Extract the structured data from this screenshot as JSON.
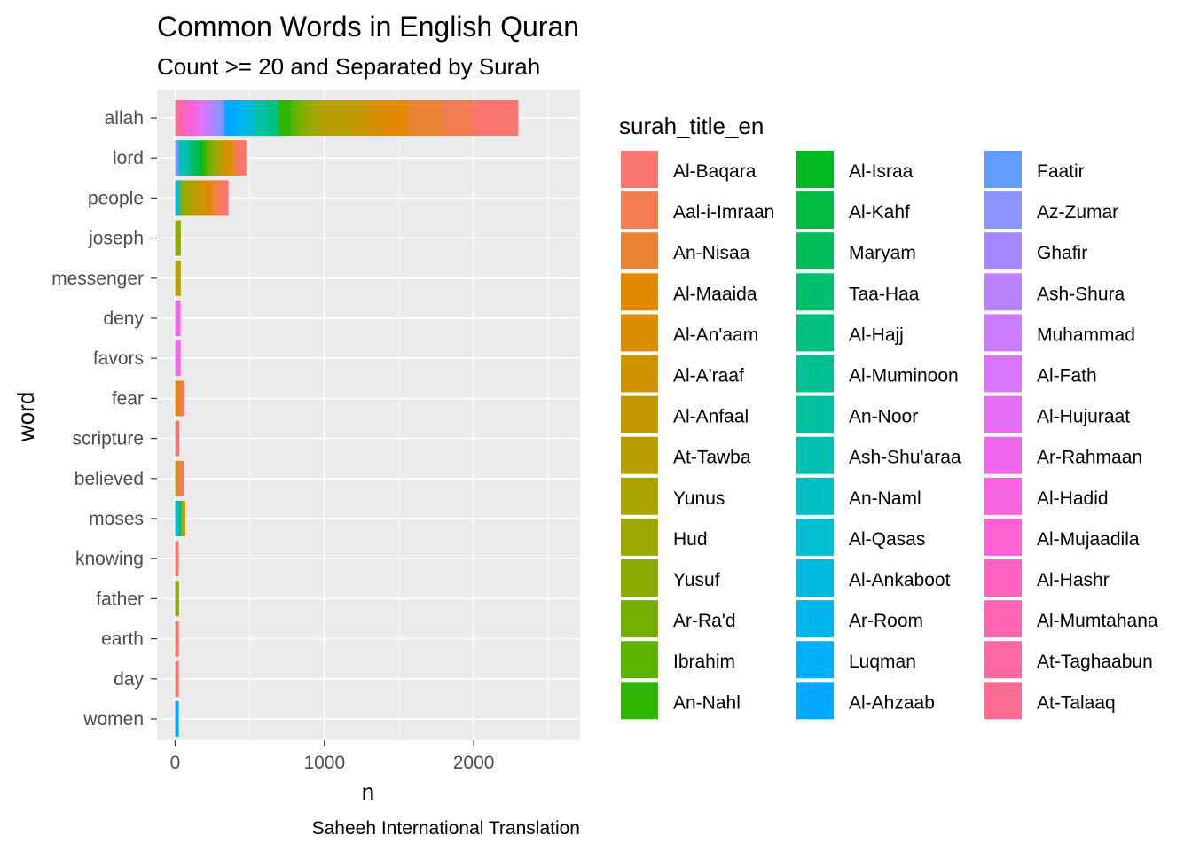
{
  "chart_data": {
    "type": "bar",
    "orientation": "horizontal",
    "stacked": true,
    "title": "Common Words in English Quran",
    "subtitle": "Count >= 20 and Separated by Surah",
    "xlabel": "n",
    "ylabel": "word",
    "caption": "Saheeh International Translation",
    "xlim": [
      0,
      2700
    ],
    "xticks": [
      0,
      1000,
      2000
    ],
    "grid": true,
    "legend_position": "right",
    "legend_title": "surah_title_en",
    "categories": [
      "allah",
      "lord",
      "people",
      "joseph",
      "messenger",
      "deny",
      "favors",
      "fear",
      "scripture",
      "believed",
      "moses",
      "knowing",
      "father",
      "earth",
      "day",
      "women"
    ],
    "surahs": [
      "Al-Baqara",
      "Aal-i-Imraan",
      "An-Nisaa",
      "Al-Maaida",
      "Al-An'aam",
      "Al-A'raaf",
      "Al-Anfaal",
      "At-Tawba",
      "Yunus",
      "Hud",
      "Yusuf",
      "Ar-Ra'd",
      "Ibrahim",
      "An-Nahl",
      "Al-Israa",
      "Al-Kahf",
      "Maryam",
      "Taa-Haa",
      "Al-Hajj",
      "Al-Muminoon",
      "An-Noor",
      "Ash-Shu'araa",
      "An-Naml",
      "Al-Qasas",
      "Al-Ankaboot",
      "Ar-Room",
      "Luqman",
      "Al-Ahzaab",
      "Faatir",
      "Az-Zumar",
      "Ghafir",
      "Ash-Shura",
      "Muhammad",
      "Al-Fath",
      "Al-Hujuraat",
      "Ar-Rahmaan",
      "Al-Hadid",
      "Al-Mujaadila",
      "Al-Hashr",
      "Al-Mumtahana",
      "At-Taghaabun",
      "At-Talaaq"
    ],
    "colors": [
      "#F8766D",
      "#F27D53",
      "#EB8335",
      "#E38900",
      "#DA8F00",
      "#CF9400",
      "#C49A00",
      "#B79F00",
      "#AAA300",
      "#9BA800",
      "#8AAB00",
      "#75AF00",
      "#5BB300",
      "#30B600",
      "#00B81F",
      "#00BA42",
      "#00BC59",
      "#00BE6D",
      "#00BF80",
      "#00C091",
      "#00C0A2",
      "#00C0B2",
      "#00BFC2",
      "#00BDD0",
      "#00BADE",
      "#00B6EB",
      "#00B0F6",
      "#00A9FF",
      "#619CFF",
      "#8B93FF",
      "#A58AFF",
      "#B983FF",
      "#C97CFF",
      "#D874FD",
      "#E56DF4",
      "#EF67EB",
      "#F863DF",
      "#FD61D2",
      "#FF61C3",
      "#FF64B3",
      "#FF68A2",
      "#FD6C90"
    ],
    "series": [
      {
        "category": "allah",
        "segments": [
          [
            "At-Talaaq",
            18
          ],
          [
            "At-Taghaabun",
            17
          ],
          [
            "Al-Mumtahana",
            19
          ],
          [
            "Al-Hashr",
            20
          ],
          [
            "Al-Mujaadila",
            38
          ],
          [
            "Al-Hadid",
            30
          ],
          [
            "Ar-Rahmaan",
            0
          ],
          [
            "Al-Hujuraat",
            25
          ],
          [
            "Al-Fath",
            30
          ],
          [
            "Muhammad",
            25
          ],
          [
            "Ash-Shura",
            30
          ],
          [
            "Ghafir",
            25
          ],
          [
            "Az-Zumar",
            30
          ],
          [
            "Faatir",
            25
          ],
          [
            "Al-Ahzaab",
            90
          ],
          [
            "Luqman",
            20
          ],
          [
            "Ar-Room",
            35
          ],
          [
            "Al-Ankaboot",
            30
          ],
          [
            "Al-Qasas",
            15
          ],
          [
            "An-Naml",
            15
          ],
          [
            "Ash-Shu'araa",
            0
          ],
          [
            "An-Noor",
            80
          ],
          [
            "Al-Muminoon",
            0
          ],
          [
            "Al-Hajj",
            75
          ],
          [
            "Taa-Haa",
            0
          ],
          [
            "Maryam",
            0
          ],
          [
            "Al-Kahf",
            0
          ],
          [
            "Al-Israa",
            0
          ],
          [
            "An-Nahl",
            85
          ],
          [
            "Ibrahim",
            40
          ],
          [
            "Ar-Ra'd",
            35
          ],
          [
            "Yusuf",
            45
          ],
          [
            "Hud",
            40
          ],
          [
            "Yunus",
            60
          ],
          [
            "At-Tawba",
            170
          ],
          [
            "Al-Anfaal",
            90
          ],
          [
            "Al-A'raaf",
            60
          ],
          [
            "Al-An'aam",
            90
          ],
          [
            "Al-Maaida",
            150
          ],
          [
            "An-Nisaa",
            230
          ],
          [
            "Aal-i-Imraan",
            210
          ],
          [
            "Al-Baqara",
            300
          ]
        ]
      },
      {
        "category": "lord",
        "segments": [
          [
            "Az-Zumar",
            15
          ],
          [
            "Faatir",
            10
          ],
          [
            "Ash-Shu'araa",
            45
          ],
          [
            "An-Naml",
            15
          ],
          [
            "An-Noor",
            0
          ],
          [
            "Al-Hajj",
            15
          ],
          [
            "Taa-Haa",
            20
          ],
          [
            "Maryam",
            20
          ],
          [
            "Al-Kahf",
            25
          ],
          [
            "Al-Israa",
            20
          ],
          [
            "An-Nahl",
            20
          ],
          [
            "Ibrahim",
            20
          ],
          [
            "Ar-Ra'd",
            15
          ],
          [
            "Yusuf",
            20
          ],
          [
            "Hud",
            30
          ],
          [
            "Yunus",
            20
          ],
          [
            "Al-A'raaf",
            45
          ],
          [
            "Al-An'aam",
            35
          ],
          [
            "Aal-i-Imraan",
            30
          ],
          [
            "Al-Baqara",
            55
          ]
        ]
      },
      {
        "category": "people",
        "segments": [
          [
            "Al-Ankaboot",
            20
          ],
          [
            "Ash-Shu'araa",
            10
          ],
          [
            "Yusuf",
            15
          ],
          [
            "Hud",
            40
          ],
          [
            "Yunus",
            30
          ],
          [
            "At-Tawba",
            30
          ],
          [
            "Al-A'raaf",
            60
          ],
          [
            "Al-Maaida",
            35
          ],
          [
            "An-Nisaa",
            40
          ],
          [
            "Aal-i-Imraan",
            20
          ],
          [
            "Al-Baqara",
            55
          ]
        ]
      },
      {
        "category": "joseph",
        "segments": [
          [
            "Yusuf",
            36
          ]
        ]
      },
      {
        "category": "messenger",
        "segments": [
          [
            "At-Tawba",
            36
          ]
        ]
      },
      {
        "category": "deny",
        "segments": [
          [
            "Ar-Rahmaan",
            34
          ]
        ]
      },
      {
        "category": "favors",
        "segments": [
          [
            "Ar-Rahmaan",
            35
          ]
        ]
      },
      {
        "category": "fear",
        "segments": [
          [
            "Al-Maaida",
            20
          ],
          [
            "An-Nisaa",
            20
          ],
          [
            "Al-Baqara",
            22
          ]
        ]
      },
      {
        "category": "scripture",
        "segments": [
          [
            "Al-Baqara",
            26
          ]
        ]
      },
      {
        "category": "believed",
        "segments": [
          [
            "Yunus",
            14
          ],
          [
            "An-Nisaa",
            20
          ],
          [
            "Al-Baqara",
            21
          ]
        ]
      },
      {
        "category": "moses",
        "segments": [
          [
            "Al-Qasas",
            22
          ],
          [
            "Taa-Haa",
            20
          ],
          [
            "Al-A'raaf",
            24
          ]
        ]
      },
      {
        "category": "knowing",
        "segments": [
          [
            "Al-Baqara",
            21
          ]
        ]
      },
      {
        "category": "father",
        "segments": [
          [
            "Yusuf",
            24
          ]
        ]
      },
      {
        "category": "earth",
        "segments": [
          [
            "Al-Baqara",
            23
          ]
        ]
      },
      {
        "category": "day",
        "segments": [
          [
            "Al-Baqara",
            23
          ]
        ]
      },
      {
        "category": "women",
        "segments": [
          [
            "Al-Ahzaab",
            22
          ]
        ]
      }
    ]
  }
}
